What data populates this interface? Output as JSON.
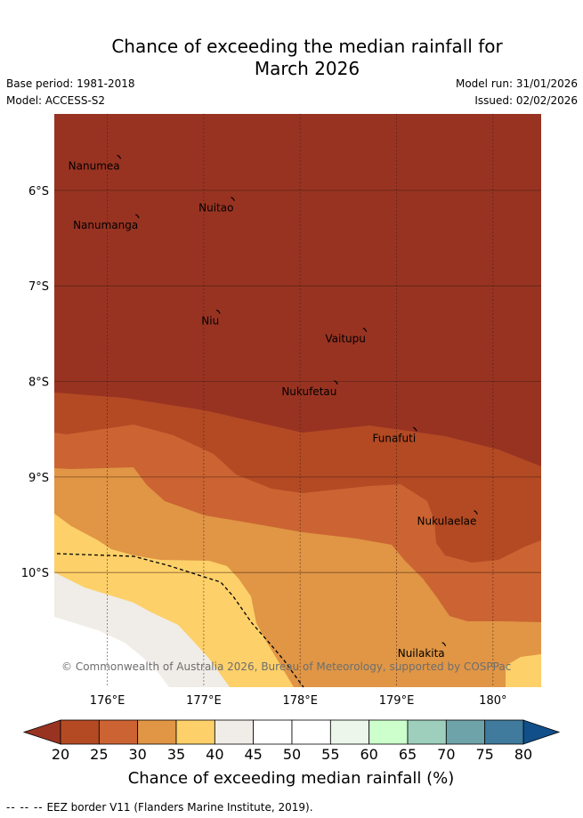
{
  "title_line1": "Chance of exceeding the median rainfall for",
  "title_line2": "March 2026",
  "meta": {
    "base_period": "Base period: 1981-2018",
    "model": "Model: ACCESS-S2",
    "model_run": "Model run: 31/01/2026",
    "issued": "Issued: 02/02/2026"
  },
  "map": {
    "extent": {
      "lon": [
        175.45,
        180.5
      ],
      "lat": [
        -11.2,
        -5.2
      ]
    },
    "latitude_labels": [
      {
        "lat": -6,
        "label": "6°S"
      },
      {
        "lat": -7,
        "label": "7°S"
      },
      {
        "lat": -8,
        "label": "8°S"
      },
      {
        "lat": -9,
        "label": "9°S"
      },
      {
        "lat": -10,
        "label": "10°S"
      }
    ],
    "longitude_labels": [
      {
        "lon": 176,
        "label": "176°E"
      },
      {
        "lon": 177,
        "label": "177°E"
      },
      {
        "lon": 178,
        "label": "178°E"
      },
      {
        "lon": 179,
        "label": "179°E"
      },
      {
        "lon": 180,
        "label": "180°"
      }
    ],
    "places": [
      {
        "name": "Nanumea",
        "lon": 176.13,
        "lat": -5.67
      },
      {
        "name": "Nuitao",
        "lon": 177.31,
        "lat": -6.11
      },
      {
        "name": "Nanumanga",
        "lon": 176.32,
        "lat": -6.29
      },
      {
        "name": "Niu",
        "lon": 177.16,
        "lat": -7.29
      },
      {
        "name": "Vaitupu",
        "lon": 178.68,
        "lat": -7.48
      },
      {
        "name": "Nukufetau",
        "lon": 178.38,
        "lat": -8.03
      },
      {
        "name": "Funafuti",
        "lon": 179.2,
        "lat": -8.52
      },
      {
        "name": "Nukulaelae",
        "lon": 179.83,
        "lat": -9.39
      },
      {
        "name": "Nuilakita",
        "lon": 179.5,
        "lat": -10.77
      }
    ],
    "copyright": "© Commonwealth of Australia 2026, Bureau of Meteorology, supported by COSPPac"
  },
  "colorbar": {
    "ticks": [
      20,
      25,
      30,
      35,
      40,
      45,
      50,
      55,
      60,
      65,
      70,
      75,
      80
    ],
    "colors": [
      "#b34a24",
      "#cb6432",
      "#e09645",
      "#fdd069",
      "#f0ece7",
      "#ffffff",
      "#ffffff",
      "#ecf6ea",
      "#ccffcc",
      "#9dcfbc",
      "#6ea3aa",
      "#407a9c"
    ],
    "under_color": "#983322",
    "over_color": "#114f8a",
    "label": "Chance of exceeding median rainfall (%)"
  },
  "footer": {
    "dashes": "-- -- --",
    "text": "EEZ border V11 (Flanders Marine Institute, 2019)."
  }
}
